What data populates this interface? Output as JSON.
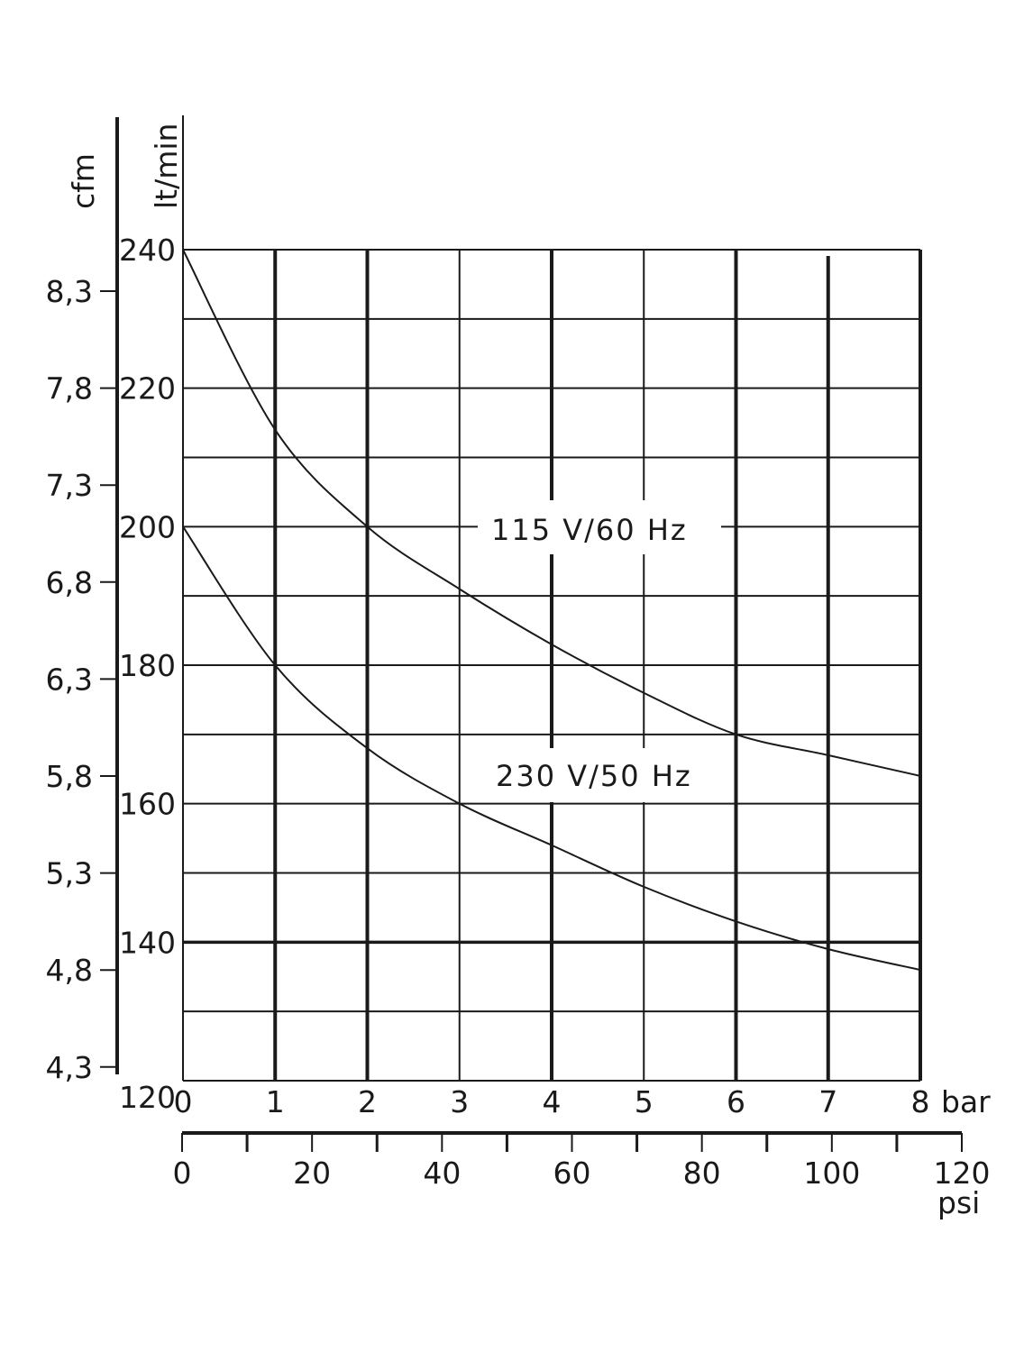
{
  "chart_data": {
    "type": "line",
    "title": "",
    "xlabel": "bar",
    "xlabel_secondary": "psi",
    "ylabel": "lt/min",
    "ylabel_secondary": "cfm",
    "xlim": [
      0,
      8
    ],
    "ylim": [
      120,
      240
    ],
    "grid": true,
    "x": [
      0,
      1,
      2,
      3,
      4,
      5,
      6,
      7,
      8
    ],
    "x_ticks": [
      "0",
      "1",
      "2",
      "3",
      "4",
      "5",
      "6",
      "7",
      "8"
    ],
    "x_unit_label": "bar",
    "psi_ticks": [
      "0",
      "20",
      "40",
      "60",
      "80",
      "100",
      "120"
    ],
    "psi_unit_label": "psi",
    "y_ticks": [
      "120",
      "140",
      "160",
      "180",
      "200",
      "220",
      "240"
    ],
    "y_unit_label": "lt/min",
    "cfm_ticks": [
      "8,3",
      "7,8",
      "7,3",
      "6,8",
      "6,3",
      "5,8",
      "5,3",
      "4,8",
      "4,3"
    ],
    "cfm_unit_label": "cfm",
    "series": [
      {
        "name": "115 V/60 Hz",
        "values": [
          240,
          214,
          200,
          191,
          183,
          176,
          170,
          167,
          164
        ]
      },
      {
        "name": "230 V/50 Hz",
        "values": [
          200,
          180,
          168,
          160,
          154,
          148,
          143,
          139,
          136
        ]
      }
    ],
    "annotations": [
      {
        "text": "115 V/60 Hz",
        "x": 4.5,
        "y": 200
      },
      {
        "text": "230 V/50 Hz",
        "x": 4.5,
        "y": 164
      }
    ]
  }
}
